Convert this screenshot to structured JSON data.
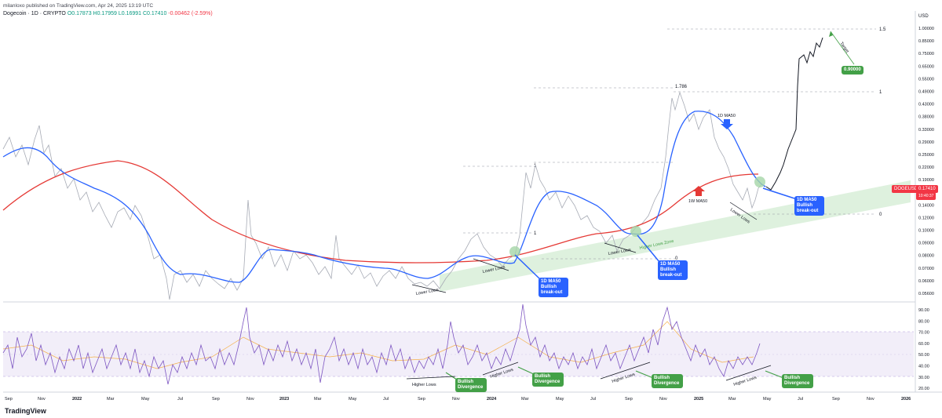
{
  "header": {
    "publisher": "milanloxo published on TradingView.com, Apr 24, 2025 13:19 UTC",
    "symbol": "Dogecoin · 1D · CRYPTO",
    "ohlc": "O0.17873 H0.17959 L0.16991 C0.17410",
    "change": "-0.00462 (-2.59%)"
  },
  "currency": "USD",
  "price_tag": {
    "symbol": "DOGEUSD",
    "price": "0.17410",
    "countdown": "10:40:37"
  },
  "brand": "TradingView",
  "colors": {
    "price": "#b0b3bd",
    "ma1d": "#2962ff",
    "ma1w": "#e53935",
    "rsi": "#7e57c2",
    "rsi_ma": "#f5b14c",
    "annotation_blue": "#2962ff",
    "annotation_green": "#43a047",
    "channel": "#d6eed6"
  },
  "chart_data": {
    "type": "line",
    "title": "",
    "x_axis_labels": [
      "Sep",
      "Nov",
      "2022",
      "Mar",
      "May",
      "Jul",
      "Sep",
      "Nov",
      "2023",
      "Mar",
      "May",
      "Jul",
      "Sep",
      "Nov",
      "2024",
      "Mar",
      "May",
      "Jul",
      "Sep",
      "Nov",
      "2025",
      "Mar",
      "May",
      "Jul",
      "Sep",
      "Nov",
      "2026"
    ],
    "y_axis_labels": [
      "1.00000",
      "0.85000",
      "0.75000",
      "0.65000",
      "0.55000",
      "0.49000",
      "0.43000",
      "0.38000",
      "0.33000",
      "0.29000",
      "0.25000",
      "0.22000",
      "0.19000",
      "0.16000",
      "0.14000",
      "0.12000",
      "0.10000",
      "0.09000",
      "0.08000",
      "0.07000",
      "0.06000",
      "0.05600"
    ],
    "rsi_axis_labels": [
      "90.00",
      "80.00",
      "70.00",
      "60.00",
      "50.00",
      "40.00",
      "30.00",
      "20.00"
    ],
    "y_scale": "log",
    "series": [
      {
        "name": "Dogecoin price",
        "x": [
          "2021-09",
          "2021-11",
          "2022-01",
          "2022-03",
          "2022-05",
          "2022-06",
          "2022-09",
          "2022-11",
          "2023-01",
          "2023-03",
          "2023-05",
          "2023-07",
          "2023-09",
          "2023-10",
          "2023-12",
          "2024-02",
          "2024-03",
          "2024-05",
          "2024-07",
          "2024-08",
          "2024-10",
          "2024-11",
          "2024-12",
          "2025-02",
          "2025-03",
          "2025-04"
        ],
        "values": [
          0.26,
          0.27,
          0.17,
          0.13,
          0.085,
          0.056,
          0.061,
          0.13,
          0.078,
          0.083,
          0.071,
          0.068,
          0.061,
          0.062,
          0.1,
          0.085,
          0.21,
          0.16,
          0.12,
          0.1,
          0.12,
          0.42,
          0.38,
          0.26,
          0.17,
          0.174
        ]
      },
      {
        "name": "1D MA50",
        "x": [
          "2021-09",
          "2021-11",
          "2022-01",
          "2022-03",
          "2022-05",
          "2022-07",
          "2022-09",
          "2022-11",
          "2023-01",
          "2023-03",
          "2023-05",
          "2023-07",
          "2023-09",
          "2023-11",
          "2024-01",
          "2024-03",
          "2024-05",
          "2024-07",
          "2024-09",
          "2024-11",
          "2024-12",
          "2025-02",
          "2025-04"
        ],
        "values": [
          0.24,
          0.25,
          0.2,
          0.15,
          0.1,
          0.066,
          0.065,
          0.09,
          0.085,
          0.082,
          0.078,
          0.072,
          0.064,
          0.07,
          0.09,
          0.15,
          0.16,
          0.12,
          0.105,
          0.2,
          0.36,
          0.3,
          0.19
        ]
      },
      {
        "name": "1W MA50",
        "x": [
          "2021-09",
          "2021-11",
          "2022-01",
          "2022-03",
          "2022-05",
          "2022-07",
          "2022-09",
          "2022-11",
          "2023-01",
          "2023-03",
          "2023-05",
          "2023-07",
          "2023-09",
          "2023-11",
          "2024-01",
          "2024-03",
          "2024-05",
          "2024-07",
          "2024-09",
          "2024-11",
          "2025-01",
          "2025-03",
          "2025-04"
        ],
        "values": [
          0.15,
          0.19,
          0.22,
          0.21,
          0.17,
          0.13,
          0.1,
          0.09,
          0.083,
          0.078,
          0.075,
          0.075,
          0.075,
          0.076,
          0.078,
          0.09,
          0.1,
          0.11,
          0.12,
          0.15,
          0.19,
          0.2,
          0.2
        ]
      },
      {
        "name": "Projection",
        "x": [
          "2025-04",
          "2025-05",
          "2025-06",
          "2025-07",
          "2025-08"
        ],
        "values": [
          0.174,
          0.22,
          0.32,
          0.75,
          0.85
        ]
      },
      {
        "name": "RSI",
        "x": [
          "2021-09",
          "2021-11",
          "2022-01",
          "2022-03",
          "2022-05",
          "2022-07",
          "2022-09",
          "2022-11",
          "2023-01",
          "2023-03",
          "2023-05",
          "2023-07",
          "2023-09",
          "2023-11",
          "2024-01",
          "2024-03",
          "2024-05",
          "2024-07",
          "2024-09",
          "2024-11",
          "2025-01",
          "2025-03",
          "2025-04"
        ],
        "values": [
          55,
          62,
          45,
          50,
          35,
          30,
          45,
          85,
          50,
          55,
          42,
          48,
          38,
          60,
          58,
          88,
          45,
          40,
          45,
          90,
          45,
          35,
          58
        ]
      }
    ],
    "fib_levels": [
      {
        "label": "1.5",
        "value": 0.9
      },
      {
        "label": "1.786",
        "value": 0.48
      },
      {
        "label": "1",
        "value": 0.46
      },
      {
        "label": "1",
        "value": 0.22
      },
      {
        "label": "1",
        "value": 0.11
      },
      {
        "label": "0",
        "value": 0.085
      },
      {
        "label": "0",
        "value": 0.125
      }
    ],
    "annotations": {
      "target_label": "Target",
      "target_value": "0.90000",
      "ma1d_label": "1D MA50",
      "ma1w_label": "1W MA50",
      "breakout": [
        "1D MA50 Bullish break-out",
        "1D MA50 Bullish break-out",
        "1D MA50 Bullish break-out"
      ],
      "higher_lows_zone": "Higher Lows Zone",
      "lower_lows": [
        "Lower Lows",
        "Lower Lows",
        "Lower Lows",
        "Lower Lows"
      ],
      "higher_lows": [
        "Higher Lows",
        "Higher Lows",
        "Higher Lows",
        "Higher Lows"
      ],
      "bullish_divergence": [
        "Bullish Divergence",
        "Bullish Divergence",
        "Bullish Divergence",
        "Bullish Divergence"
      ]
    }
  }
}
